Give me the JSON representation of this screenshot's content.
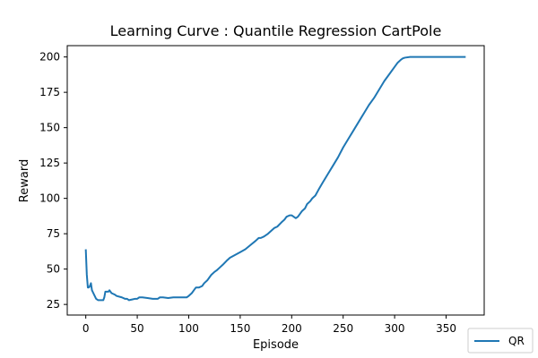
{
  "chart_data": {
    "type": "line",
    "title": "Learning Curve : Quantile Regression CartPole",
    "xlabel": "Episode",
    "ylabel": "Reward",
    "xlim": [
      -18,
      387
    ],
    "ylim": [
      17.5,
      208
    ],
    "xticks": [
      0,
      50,
      100,
      150,
      200,
      250,
      300,
      350
    ],
    "yticks": [
      25,
      50,
      75,
      100,
      125,
      150,
      175,
      200
    ],
    "grid": false,
    "legend_position": "lower-right-outside",
    "series": [
      {
        "name": "QR",
        "color": "#1f77b4",
        "points": [
          [
            0,
            64
          ],
          [
            1,
            46
          ],
          [
            2,
            37
          ],
          [
            3,
            37
          ],
          [
            4,
            38
          ],
          [
            5,
            40
          ],
          [
            6,
            35
          ],
          [
            8,
            32
          ],
          [
            10,
            29
          ],
          [
            12,
            28
          ],
          [
            15,
            28
          ],
          [
            17,
            28
          ],
          [
            18,
            30
          ],
          [
            19,
            34
          ],
          [
            20,
            34
          ],
          [
            22,
            34
          ],
          [
            23,
            35
          ],
          [
            25,
            33
          ],
          [
            28,
            32
          ],
          [
            30,
            31
          ],
          [
            35,
            30
          ],
          [
            38,
            29
          ],
          [
            40,
            29
          ],
          [
            42,
            28
          ],
          [
            45,
            28.5
          ],
          [
            48,
            29
          ],
          [
            50,
            29
          ],
          [
            52,
            30
          ],
          [
            55,
            30
          ],
          [
            60,
            29.5
          ],
          [
            65,
            29
          ],
          [
            70,
            29
          ],
          [
            72,
            30
          ],
          [
            75,
            30
          ],
          [
            80,
            29.5
          ],
          [
            85,
            30
          ],
          [
            90,
            30
          ],
          [
            95,
            30
          ],
          [
            98,
            30
          ],
          [
            100,
            31
          ],
          [
            103,
            33
          ],
          [
            105,
            35
          ],
          [
            107,
            37
          ],
          [
            110,
            37
          ],
          [
            113,
            38
          ],
          [
            115,
            40
          ],
          [
            118,
            42
          ],
          [
            120,
            44
          ],
          [
            122,
            46
          ],
          [
            125,
            48
          ],
          [
            127,
            49
          ],
          [
            130,
            51
          ],
          [
            133,
            53
          ],
          [
            137,
            56
          ],
          [
            140,
            58
          ],
          [
            145,
            60
          ],
          [
            150,
            62
          ],
          [
            155,
            64
          ],
          [
            160,
            67
          ],
          [
            165,
            70
          ],
          [
            168,
            72
          ],
          [
            170,
            72
          ],
          [
            173,
            73
          ],
          [
            177,
            75
          ],
          [
            180,
            77
          ],
          [
            183,
            79
          ],
          [
            186,
            80
          ],
          [
            190,
            83
          ],
          [
            193,
            85
          ],
          [
            195,
            87
          ],
          [
            198,
            88
          ],
          [
            200,
            88
          ],
          [
            202,
            87
          ],
          [
            204,
            86
          ],
          [
            206,
            87
          ],
          [
            208,
            89
          ],
          [
            210,
            91
          ],
          [
            213,
            93
          ],
          [
            215,
            96
          ],
          [
            218,
            98
          ],
          [
            220,
            100
          ],
          [
            223,
            102
          ],
          [
            226,
            106
          ],
          [
            230,
            111
          ],
          [
            235,
            117
          ],
          [
            240,
            123
          ],
          [
            245,
            129
          ],
          [
            250,
            136
          ],
          [
            255,
            142
          ],
          [
            260,
            148
          ],
          [
            265,
            154
          ],
          [
            270,
            160
          ],
          [
            275,
            166
          ],
          [
            280,
            171
          ],
          [
            285,
            177
          ],
          [
            290,
            183
          ],
          [
            295,
            188
          ],
          [
            300,
            193
          ],
          [
            303,
            196
          ],
          [
            306,
            198
          ],
          [
            308,
            199
          ],
          [
            310,
            199.5
          ],
          [
            315,
            200
          ],
          [
            320,
            200
          ],
          [
            330,
            200
          ],
          [
            340,
            200
          ],
          [
            350,
            200
          ],
          [
            360,
            200
          ],
          [
            369,
            200
          ]
        ]
      }
    ]
  }
}
